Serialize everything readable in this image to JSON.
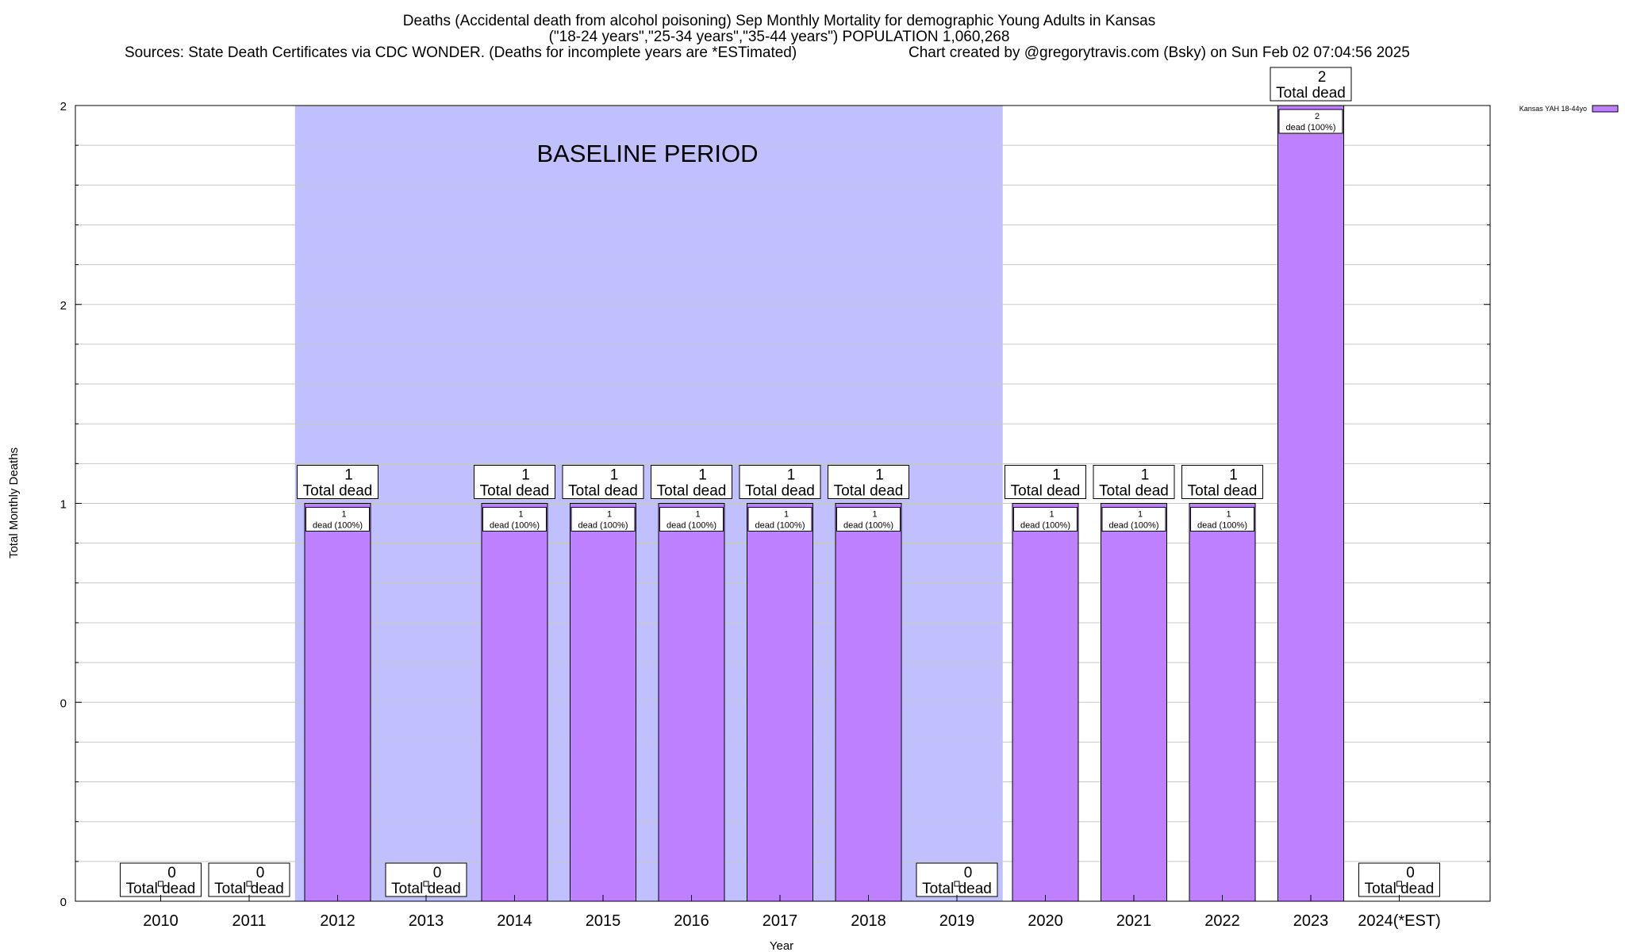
{
  "chart_data": {
    "type": "bar",
    "title_lines": [
      "Deaths (Accidental death from alcohol poisoning) Sep Monthly Mortality for demographic Young Adults in Kansas",
      "(\"18-24 years\",\"25-34 years\",\"35-44 years\") POPULATION 1,060,268"
    ],
    "sources": "Sources: State Death Certificates via CDC WONDER. (Deaths for incomplete years are *ESTimated)",
    "credit": "Chart created by @gregorytravis.com (Bsky) on Sun Feb 02 07:04:56 2025",
    "xlabel": "Year",
    "ylabel": "Total Monthly Deaths",
    "categories": [
      "2010",
      "2011",
      "2012",
      "2013",
      "2014",
      "2015",
      "2016",
      "2017",
      "2018",
      "2019",
      "2020",
      "2021",
      "2022",
      "2023",
      "2024(*EST)"
    ],
    "series": [
      {
        "name": "Kansas YAH 18-44yo",
        "color": "#bf80ff",
        "values": [
          0,
          0,
          1,
          0,
          1,
          1,
          1,
          1,
          1,
          0,
          1,
          1,
          1,
          2,
          0
        ]
      }
    ],
    "total_label_suffix": "Total dead",
    "inner_label_suffix": "dead (100%)",
    "y_tick_labels": [
      "0",
      "0",
      "1",
      "2",
      "2"
    ],
    "ylim": [
      0,
      2
    ],
    "baseline": {
      "label": "BASELINE PERIOD",
      "from": "2012",
      "to": "2019",
      "color": "#c0c0ff"
    },
    "grid": true,
    "legend_position": "top-right"
  }
}
